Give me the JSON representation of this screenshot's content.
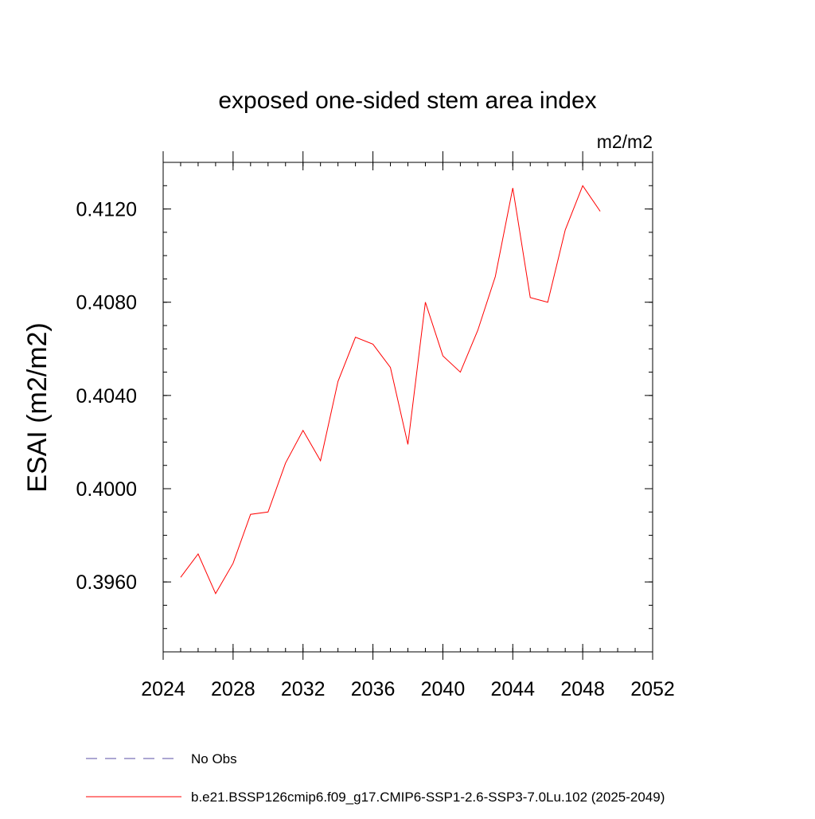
{
  "chart_data": {
    "type": "line",
    "title": "exposed one-sided stem area index",
    "units": "m2/m2",
    "ylabel": "ESAI  (m2/m2)",
    "xlabel": "",
    "xlim": [
      2024,
      2052
    ],
    "ylim": [
      0.393,
      0.414
    ],
    "x_ticks": [
      2024,
      2028,
      2032,
      2036,
      2040,
      2044,
      2048,
      2052
    ],
    "x_tick_labels": [
      "2024",
      "2028",
      "2032",
      "2036",
      "2040",
      "2044",
      "2048",
      "2052"
    ],
    "x_minor_step": 1,
    "y_ticks": [
      0.396,
      0.4,
      0.404,
      0.408,
      0.412
    ],
    "y_tick_labels": [
      "0.3960",
      "0.4000",
      "0.4040",
      "0.4080",
      "0.4120"
    ],
    "y_minor_step": 0.001,
    "grid": false,
    "legend_position": "bottom",
    "legend": [
      {
        "label": "No Obs",
        "color": "#5a4fa6",
        "style": "dashed"
      },
      {
        "label": "b.e21.BSSP126cmip6.f09_g17.CMIP6-SSP1-2.6-SSP3-7.0Lu.102 (2025-2049)",
        "color": "#ff0000",
        "style": "solid"
      }
    ],
    "series": [
      {
        "name": "b.e21.BSSP126cmip6.f09_g17.CMIP6-SSP1-2.6-SSP3-7.0Lu.102 (2025-2049)",
        "color": "#ff0000",
        "x": [
          2025,
          2026,
          2027,
          2028,
          2029,
          2030,
          2031,
          2032,
          2033,
          2034,
          2035,
          2036,
          2037,
          2038,
          2039,
          2040,
          2041,
          2042,
          2043,
          2044,
          2045,
          2046,
          2047,
          2048,
          2049
        ],
        "y": [
          0.3962,
          0.3972,
          0.3955,
          0.3968,
          0.3989,
          0.399,
          0.4011,
          0.4025,
          0.4012,
          0.4046,
          0.4065,
          0.4062,
          0.4052,
          0.4019,
          0.408,
          0.4057,
          0.405,
          0.4068,
          0.4091,
          0.4129,
          0.4082,
          0.408,
          0.4111,
          0.413,
          0.4119
        ]
      }
    ]
  }
}
